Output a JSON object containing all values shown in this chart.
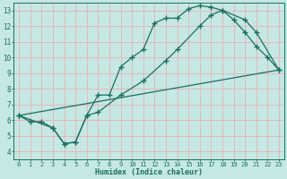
{
  "xlabel": "Humidex (Indice chaleur)",
  "bg_color": "#c5e8e5",
  "grid_color": "#e8b0b0",
  "line_color": "#1a7060",
  "xlim": [
    -0.5,
    23.5
  ],
  "ylim": [
    3.5,
    13.5
  ],
  "xticks": [
    0,
    1,
    2,
    3,
    4,
    5,
    6,
    7,
    8,
    9,
    10,
    11,
    12,
    13,
    14,
    15,
    16,
    17,
    18,
    19,
    20,
    21,
    22,
    23
  ],
  "yticks": [
    4,
    5,
    6,
    7,
    8,
    9,
    10,
    11,
    12,
    13
  ],
  "line1_x": [
    0,
    1,
    2,
    3,
    4,
    5,
    6,
    7,
    8,
    9,
    10,
    11,
    12,
    13,
    14,
    15,
    16,
    17,
    18,
    19,
    20,
    21,
    22,
    23
  ],
  "line1_y": [
    6.3,
    5.9,
    5.9,
    5.5,
    4.5,
    4.6,
    6.3,
    7.6,
    7.6,
    9.4,
    10.0,
    10.5,
    12.2,
    12.5,
    12.5,
    13.1,
    13.3,
    13.2,
    13.0,
    12.4,
    11.6,
    10.7,
    10.0,
    9.2
  ],
  "line2_x": [
    0,
    3,
    4,
    5,
    6,
    7,
    9,
    11,
    13,
    14,
    16,
    17,
    18,
    20,
    21,
    23
  ],
  "line2_y": [
    6.3,
    5.5,
    4.5,
    4.6,
    6.3,
    6.5,
    7.6,
    8.5,
    9.8,
    10.5,
    12.0,
    12.7,
    13.0,
    12.4,
    11.6,
    9.2
  ],
  "line3_x": [
    0,
    23
  ],
  "line3_y": [
    6.3,
    9.2
  ]
}
